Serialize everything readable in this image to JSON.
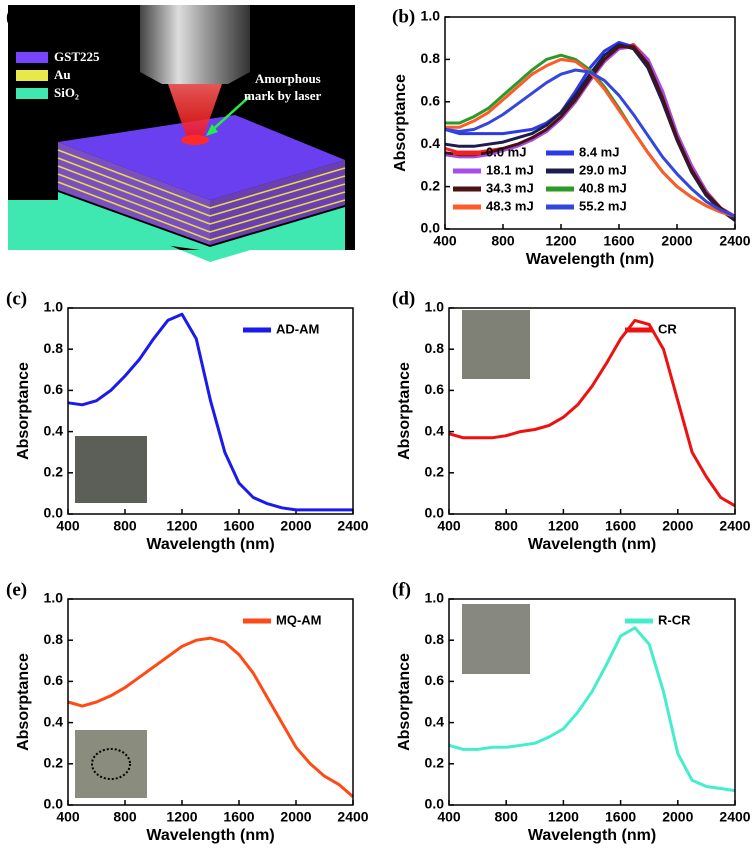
{
  "diagram": {
    "label": "(a)",
    "layers": [
      "GST225",
      "Au",
      "SiO₂"
    ],
    "annotation": [
      "Amorphous",
      "mark by laser"
    ]
  },
  "chart_data": [
    {
      "type": "line",
      "label": "(b)",
      "x_label": "Wavelength (nm)",
      "y_label": "Absorptance",
      "x": [
        400,
        500,
        600,
        700,
        800,
        900,
        1000,
        1100,
        1200,
        1300,
        1400,
        1500,
        1600,
        1700,
        1800,
        1900,
        2000,
        2100,
        2200,
        2300,
        2400
      ],
      "xlim": [
        400,
        2400
      ],
      "xticks": [
        400,
        800,
        1200,
        1600,
        2000,
        2400
      ],
      "ylim": [
        0,
        1
      ],
      "yticks": [
        {
          "value": 0,
          "label": "0.0"
        },
        0.2,
        0.4,
        0.6,
        0.8,
        {
          "value": 1,
          "label": "1.0"
        }
      ],
      "legend": "lower left",
      "series": [
        {
          "name": "0.0 mJ",
          "color": "#ee2222",
          "values": [
            0.38,
            0.36,
            0.36,
            0.37,
            0.38,
            0.4,
            0.42,
            0.46,
            0.52,
            0.6,
            0.7,
            0.79,
            0.85,
            0.87,
            0.8,
            0.65,
            0.45,
            0.3,
            0.18,
            0.1,
            0.06
          ]
        },
        {
          "name": "8.4 mJ",
          "color": "#2a3ae8",
          "values": [
            0.47,
            0.45,
            0.45,
            0.45,
            0.45,
            0.46,
            0.47,
            0.5,
            0.55,
            0.65,
            0.76,
            0.84,
            0.88,
            0.86,
            0.76,
            0.6,
            0.42,
            0.27,
            0.16,
            0.09,
            0.05
          ]
        },
        {
          "name": "18.1 mJ",
          "color": "#a64ce8",
          "values": [
            0.35,
            0.34,
            0.34,
            0.35,
            0.37,
            0.39,
            0.42,
            0.46,
            0.52,
            0.6,
            0.7,
            0.79,
            0.85,
            0.86,
            0.8,
            0.65,
            0.45,
            0.3,
            0.18,
            0.1,
            0.05
          ]
        },
        {
          "name": "29.0 mJ",
          "color": "#1c1c4e",
          "values": [
            0.4,
            0.39,
            0.39,
            0.4,
            0.41,
            0.43,
            0.45,
            0.49,
            0.55,
            0.63,
            0.73,
            0.82,
            0.87,
            0.85,
            0.76,
            0.6,
            0.42,
            0.27,
            0.16,
            0.09,
            0.04
          ]
        },
        {
          "name": "34.3 mJ",
          "color": "#4a1212",
          "values": [
            0.36,
            0.35,
            0.35,
            0.36,
            0.38,
            0.4,
            0.43,
            0.47,
            0.53,
            0.61,
            0.71,
            0.8,
            0.86,
            0.86,
            0.78,
            0.62,
            0.43,
            0.28,
            0.17,
            0.1,
            0.05
          ]
        },
        {
          "name": "40.8 mJ",
          "color": "#2a9a2a",
          "values": [
            0.5,
            0.5,
            0.53,
            0.57,
            0.63,
            0.69,
            0.75,
            0.8,
            0.82,
            0.8,
            0.75,
            0.67,
            0.57,
            0.46,
            0.36,
            0.27,
            0.2,
            0.15,
            0.11,
            0.08,
            0.06
          ]
        },
        {
          "name": "48.3 mJ",
          "color": "#ff5a28",
          "values": [
            0.48,
            0.48,
            0.51,
            0.55,
            0.61,
            0.67,
            0.73,
            0.77,
            0.8,
            0.79,
            0.74,
            0.66,
            0.56,
            0.46,
            0.36,
            0.27,
            0.2,
            0.15,
            0.11,
            0.08,
            0.06
          ]
        },
        {
          "name": "55.2 mJ",
          "color": "#3346dd",
          "values": [
            0.47,
            0.46,
            0.47,
            0.5,
            0.54,
            0.59,
            0.64,
            0.69,
            0.73,
            0.75,
            0.74,
            0.7,
            0.63,
            0.54,
            0.44,
            0.34,
            0.26,
            0.19,
            0.13,
            0.09,
            0.06
          ]
        }
      ]
    },
    {
      "type": "line",
      "label": "(c)",
      "x_label": "Wavelength (nm)",
      "y_label": "Absorptance",
      "x": [
        400,
        500,
        600,
        700,
        800,
        900,
        1000,
        1100,
        1200,
        1300,
        1400,
        1500,
        1600,
        1700,
        1800,
        1900,
        2000,
        2100,
        2200,
        2300,
        2400
      ],
      "xlim": [
        400,
        2400
      ],
      "xticks": [
        400,
        800,
        1200,
        1600,
        2000,
        2400
      ],
      "ylim": [
        0,
        1
      ],
      "yticks": [
        {
          "value": 0,
          "label": "0.0"
        },
        0.2,
        0.4,
        0.6,
        0.8,
        {
          "value": 1,
          "label": "1.0"
        }
      ],
      "legend": "upper right",
      "series": [
        {
          "name": "AD-AM",
          "color": "#1a1aee",
          "values": [
            0.54,
            0.53,
            0.55,
            0.6,
            0.67,
            0.75,
            0.85,
            0.94,
            0.97,
            0.85,
            0.55,
            0.3,
            0.15,
            0.08,
            0.05,
            0.03,
            0.02,
            0.02,
            0.02,
            0.02,
            0.02
          ]
        }
      ]
    },
    {
      "type": "line",
      "label": "(d)",
      "x_label": "Wavelength (nm)",
      "y_label": "Absorptance",
      "x": [
        400,
        500,
        600,
        700,
        800,
        900,
        1000,
        1100,
        1200,
        1300,
        1400,
        1500,
        1600,
        1700,
        1800,
        1900,
        2000,
        2100,
        2200,
        2300,
        2400
      ],
      "xlim": [
        400,
        2400
      ],
      "xticks": [
        400,
        800,
        1200,
        1600,
        2000,
        2400
      ],
      "ylim": [
        0,
        1
      ],
      "yticks": [
        {
          "value": 0,
          "label": "0.0"
        },
        0.2,
        0.4,
        0.6,
        0.8,
        {
          "value": 1,
          "label": "1.0"
        }
      ],
      "legend": "upper right",
      "series": [
        {
          "name": "CR",
          "color": "#ee1111",
          "values": [
            0.39,
            0.37,
            0.37,
            0.37,
            0.38,
            0.4,
            0.41,
            0.43,
            0.47,
            0.53,
            0.62,
            0.73,
            0.85,
            0.94,
            0.92,
            0.8,
            0.55,
            0.3,
            0.18,
            0.08,
            0.04
          ]
        }
      ]
    },
    {
      "type": "line",
      "label": "(e)",
      "x_label": "Wavelength (nm)",
      "y_label": "Absorptance",
      "x": [
        400,
        500,
        600,
        700,
        800,
        900,
        1000,
        1100,
        1200,
        1300,
        1400,
        1500,
        1600,
        1700,
        1800,
        1900,
        2000,
        2100,
        2200,
        2300,
        2400
      ],
      "xlim": [
        400,
        2400
      ],
      "xticks": [
        400,
        800,
        1200,
        1600,
        2000,
        2400
      ],
      "ylim": [
        0,
        1
      ],
      "yticks": [
        {
          "value": 0,
          "label": "0.0"
        },
        0.2,
        0.4,
        0.6,
        0.8,
        {
          "value": 1,
          "label": "1.0"
        }
      ],
      "legend": "upper right",
      "series": [
        {
          "name": "MQ-AM",
          "color": "#ff4a16",
          "values": [
            0.5,
            0.48,
            0.5,
            0.53,
            0.57,
            0.62,
            0.67,
            0.72,
            0.77,
            0.8,
            0.81,
            0.79,
            0.73,
            0.64,
            0.52,
            0.4,
            0.28,
            0.2,
            0.14,
            0.1,
            0.04
          ]
        }
      ]
    },
    {
      "type": "line",
      "label": "(f)",
      "x_label": "Wavelength (nm)",
      "y_label": "Absorptance",
      "x": [
        400,
        500,
        600,
        700,
        800,
        900,
        1000,
        1100,
        1200,
        1300,
        1400,
        1500,
        1600,
        1700,
        1800,
        1900,
        2000,
        2100,
        2200,
        2300,
        2400
      ],
      "xlim": [
        400,
        2400
      ],
      "xticks": [
        400,
        800,
        1200,
        1600,
        2000,
        2400
      ],
      "ylim": [
        0,
        1
      ],
      "yticks": [
        {
          "value": 0,
          "label": "0.0"
        },
        0.2,
        0.4,
        0.6,
        0.8,
        {
          "value": 1,
          "label": "1.0"
        }
      ],
      "legend": "upper right",
      "series": [
        {
          "name": "R-CR",
          "color": "#44eecc",
          "values": [
            0.29,
            0.27,
            0.27,
            0.28,
            0.28,
            0.29,
            0.3,
            0.33,
            0.37,
            0.45,
            0.55,
            0.68,
            0.82,
            0.86,
            0.78,
            0.55,
            0.25,
            0.12,
            0.09,
            0.08,
            0.07
          ]
        }
      ]
    }
  ]
}
